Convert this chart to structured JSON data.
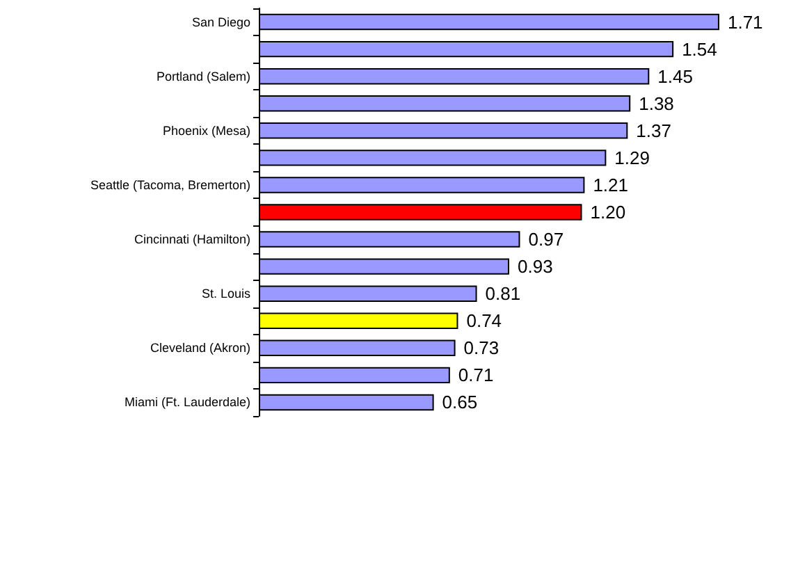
{
  "chart_data": {
    "type": "bar",
    "orientation": "horizontal",
    "categories": [
      "San Diego",
      null,
      "Portland (Salem)",
      null,
      "Phoenix (Mesa)",
      null,
      "Seattle (Tacoma, Bremerton)",
      null,
      "Cincinnati (Hamilton)",
      null,
      "St. Louis",
      null,
      "Cleveland (Akron)",
      null,
      "Miami (Ft. Lauderdale)"
    ],
    "values": [
      1.71,
      1.54,
      1.45,
      1.38,
      1.37,
      1.29,
      1.21,
      1.2,
      0.97,
      0.93,
      0.81,
      0.74,
      0.73,
      0.71,
      0.65
    ],
    "colors": [
      "#9999ff",
      "#9999ff",
      "#9999ff",
      "#9999ff",
      "#9999ff",
      "#9999ff",
      "#9999ff",
      "#ff0000",
      "#9999ff",
      "#9999ff",
      "#9999ff",
      "#ffff00",
      "#9999ff",
      "#9999ff",
      "#9999ff"
    ],
    "value_labels": [
      "1.71",
      "1.54",
      "1.45",
      "1.38",
      "1.37",
      "1.29",
      "1.21",
      "1.20",
      "0.97",
      "0.93",
      "0.81",
      "0.74",
      "0.73",
      "0.71",
      "0.65"
    ],
    "grid": false
  }
}
